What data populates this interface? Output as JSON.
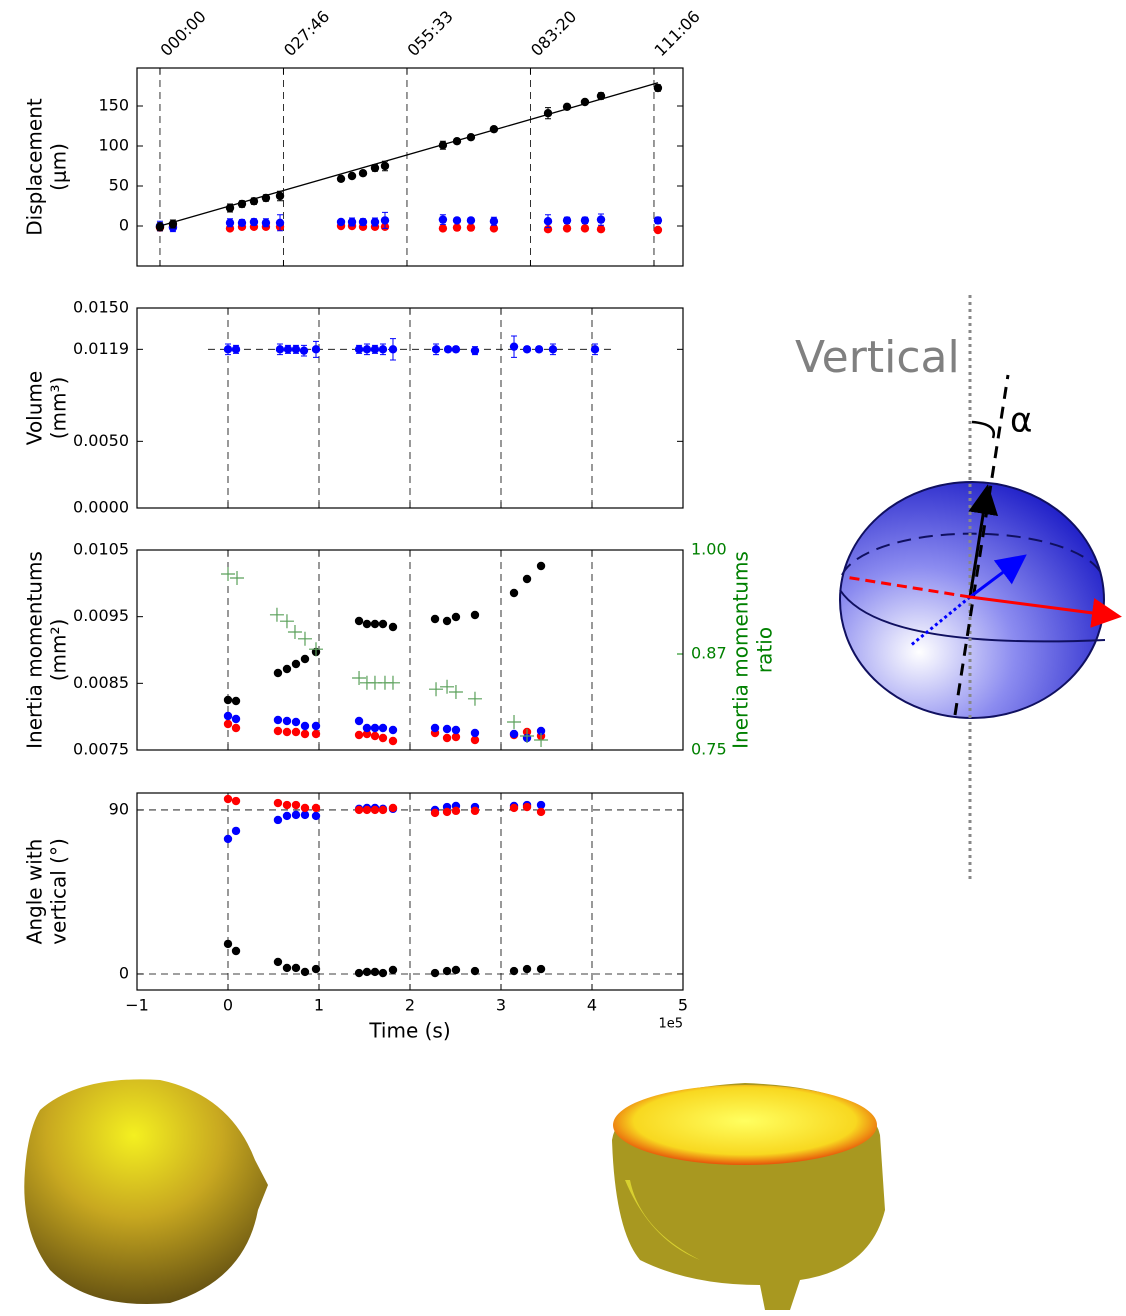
{
  "chart_data": [
    {
      "type": "scatter",
      "ylabel": [
        "Displacement",
        "(μm)"
      ],
      "xlim": [
        -0.186,
        4.235
      ],
      "ylim": [
        -50,
        197.5
      ],
      "xticks": [
        {
          "value": 0,
          "label": "000:00"
        },
        {
          "value": 1,
          "label": "027:46"
        },
        {
          "value": 2,
          "label": "055:33"
        },
        {
          "value": 3,
          "label": "083:20"
        },
        {
          "value": 4,
          "label": "111:06"
        }
      ],
      "xtick_position": "top",
      "yticks": [
        0,
        50,
        100,
        150
      ],
      "grid_x": true,
      "grid_y": false,
      "series": [
        {
          "kind": "points",
          "color": "#ff0000",
          "x": [
            0,
            0.105,
            0.567,
            0.664,
            0.761,
            0.858,
            0.972,
            1.466,
            1.555,
            1.644,
            1.741,
            1.822,
            2.291,
            2.405,
            2.518,
            2.704,
            3.142,
            3.296,
            3.441,
            3.571,
            4.032
          ],
          "values": [
            -2,
            -1,
            -3,
            -1,
            -1,
            -1,
            -1,
            0,
            0,
            -1,
            -1,
            -1,
            -3,
            -2,
            -2,
            -3,
            -4,
            -3,
            -3,
            -4,
            -5
          ]
        },
        {
          "kind": "points",
          "color": "#0000ff",
          "x": [
            0,
            0.105,
            0.567,
            0.664,
            0.761,
            0.858,
            0.972,
            1.466,
            1.555,
            1.644,
            1.741,
            1.822,
            2.291,
            2.405,
            2.518,
            2.704,
            3.142,
            3.296,
            3.441,
            3.571,
            4.032
          ],
          "values": [
            0,
            -2,
            4,
            4,
            5,
            4,
            4,
            5,
            5,
            5,
            5,
            7,
            8,
            7,
            7,
            6,
            6,
            7,
            7,
            8,
            7
          ],
          "errors": [
            6,
            5,
            5,
            4,
            4,
            5,
            10,
            3,
            5,
            4,
            5,
            10,
            6,
            3,
            3,
            5,
            8,
            4,
            4,
            7,
            4
          ]
        },
        {
          "kind": "line",
          "color": "#000000",
          "x": [
            0,
            4.032
          ],
          "values": [
            0,
            179
          ]
        },
        {
          "kind": "points",
          "color": "#000000",
          "x": [
            0,
            0.105,
            0.567,
            0.664,
            0.761,
            0.858,
            0.972,
            1.466,
            1.555,
            1.644,
            1.741,
            1.822,
            2.291,
            2.405,
            2.518,
            2.704,
            3.142,
            3.296,
            3.441,
            3.571,
            4.032
          ],
          "values": [
            -1,
            2.5,
            22.5,
            27.5,
            31,
            35,
            37.5,
            59,
            62.5,
            66,
            72.5,
            75,
            101,
            106,
            111,
            121,
            141,
            149,
            155,
            162.5,
            172.5
          ],
          "errors": [
            5,
            5,
            5,
            4,
            4,
            4,
            6,
            3,
            3,
            3,
            4,
            6,
            5,
            3,
            3,
            3,
            7,
            3,
            3,
            4,
            4
          ]
        }
      ]
    },
    {
      "type": "scatter",
      "ylabel": [
        "Volume",
        "(mm³)"
      ],
      "xlim": [
        -1,
        5
      ],
      "ylim": [
        0,
        0.015
      ],
      "xticks": [
        -1,
        0,
        1,
        2,
        3,
        4,
        5
      ],
      "xtick_position": "none",
      "yticks": [
        {
          "value": 0.015,
          "label": "0.0150"
        },
        {
          "value": 0.0119,
          "label": "0.0119"
        },
        {
          "value": 0.005,
          "label": "0.0050"
        },
        {
          "value": 0,
          "label": "0.0000"
        }
      ],
      "grid_x": true,
      "grid_y": false,
      "reference_line": {
        "y": 0.0119,
        "x": [
          -0.22,
          4.24
        ]
      },
      "series": [
        {
          "kind": "points",
          "color": "#0000ff",
          "x": [
            0,
            0.088,
            0.571,
            0.659,
            0.747,
            0.835,
            0.967,
            1.44,
            1.527,
            1.615,
            1.703,
            1.813,
            2.286,
            2.418,
            2.505,
            2.714,
            3.143,
            3.286,
            3.418,
            3.571,
            4.033
          ],
          "values": [
            0.0119,
            0.0119,
            0.0119,
            0.0119,
            0.0119,
            0.0118,
            0.0119,
            0.0119,
            0.0119,
            0.0119,
            0.0119,
            0.0119,
            0.0119,
            0.0119,
            0.0119,
            0.0118,
            0.0121,
            0.0119,
            0.0119,
            0.0119,
            0.0119
          ],
          "errors": [
            0.0004,
            0.0003,
            0.0004,
            0.0003,
            0.0003,
            0.0004,
            0.0006,
            0.0003,
            0.0004,
            0.0003,
            0.0004,
            0.0008,
            0.0004,
            0.0002,
            0.0002,
            0.0003,
            0.0008,
            0.0002,
            0.0002,
            0.0004,
            0.0004
          ]
        }
      ]
    },
    {
      "type": "scatter",
      "ylabel": [
        "Inertia momentums",
        "(mm²)"
      ],
      "y2label": [
        "Inertia momentums",
        "ratio"
      ],
      "y2color": "#008000",
      "xlim": [
        -1,
        5
      ],
      "ylim": [
        0.0075,
        0.0105
      ],
      "xticks": [
        -1,
        0,
        1,
        2,
        3,
        4,
        5
      ],
      "xtick_position": "none",
      "yticks": [
        {
          "value": 0.0105,
          "label": "0.0105"
        },
        {
          "value": 0.0095,
          "label": "0.0095"
        },
        {
          "value": 0.0085,
          "label": "0.0085"
        },
        {
          "value": 0.0075,
          "label": "0.0075"
        }
      ],
      "y2lim": [
        0.75,
        1.0
      ],
      "y2ticks": [
        {
          "value": 1.0,
          "label": "1.00"
        },
        0.87,
        0.75
      ],
      "grid_x": true,
      "grid_y": false,
      "series": [
        {
          "kind": "points",
          "color": "#ff0000",
          "x": [
            0,
            0.088,
            0.549,
            0.648,
            0.747,
            0.846,
            0.967,
            1.44,
            1.527,
            1.615,
            1.703,
            1.813,
            2.275,
            2.407,
            2.505,
            2.714,
            3.143,
            3.286,
            3.44
          ],
          "values": [
            0.00789,
            0.00783,
            0.007785,
            0.00777,
            0.00777,
            0.00774,
            0.00774,
            0.007725,
            0.00774,
            0.00771,
            0.00768,
            0.007635,
            0.007755,
            0.00768,
            0.007695,
            0.00765,
            0.007725,
            0.00777,
            0.00771
          ]
        },
        {
          "kind": "points",
          "color": "#0000ff",
          "x": [
            0,
            0.088,
            0.549,
            0.648,
            0.747,
            0.846,
            0.967,
            1.44,
            1.527,
            1.615,
            1.703,
            1.813,
            2.275,
            2.407,
            2.505,
            2.714,
            3.143,
            3.286,
            3.44
          ],
          "values": [
            0.00801,
            0.007965,
            0.00795,
            0.007935,
            0.00792,
            0.00786,
            0.00786,
            0.007935,
            0.00783,
            0.00783,
            0.00783,
            0.0078,
            0.00783,
            0.007815,
            0.0078,
            0.007755,
            0.00774,
            0.00768,
            0.007785
          ]
        },
        {
          "kind": "points",
          "color": "#000000",
          "x": [
            0,
            0.088,
            0.549,
            0.648,
            0.747,
            0.846,
            0.967,
            1.44,
            1.527,
            1.615,
            1.703,
            1.813,
            2.275,
            2.407,
            2.505,
            2.714,
            3.143,
            3.286,
            3.44
          ],
          "values": [
            0.00825,
            0.008235,
            0.008655,
            0.008715,
            0.00879,
            0.008865,
            0.00897,
            0.009435,
            0.00939,
            0.00939,
            0.00939,
            0.009345,
            0.009465,
            0.009435,
            0.009495,
            0.009525,
            0.009855,
            0.010065,
            0.01026
          ]
        },
        {
          "kind": "plus",
          "color": "#5aa05a",
          "axis": "y2",
          "x": [
            0,
            0.099,
            0.538,
            0.648,
            0.736,
            0.846,
            0.967,
            1.44,
            1.527,
            1.615,
            1.725,
            1.813,
            2.286,
            2.407,
            2.505,
            2.714,
            3.143,
            3.286,
            3.44
          ],
          "values": [
            0.97,
            0.965,
            0.919,
            0.911,
            0.8975,
            0.889,
            0.876,
            0.84,
            0.834,
            0.834,
            0.834,
            0.834,
            0.826,
            0.829,
            0.8225,
            0.814,
            0.785,
            0.7675,
            0.7625
          ]
        }
      ]
    },
    {
      "type": "scatter",
      "ylabel": [
        "Angle with",
        "vertical (°)"
      ],
      "xlabel": "Time (s)",
      "x_offset_label": "1e5",
      "xlim": [
        -1,
        5
      ],
      "ylim": [
        -8.8,
        99.3
      ],
      "xticks": [
        {
          "value": -1,
          "label": "−1"
        },
        0,
        1,
        2,
        3,
        4,
        5
      ],
      "xtick_position": "bottom",
      "yticks": [
        0,
        90
      ],
      "grid_x": true,
      "grid_y": true,
      "series": [
        {
          "kind": "points",
          "color": "#000000",
          "x": [
            0,
            0.088,
            0.549,
            0.648,
            0.747,
            0.846,
            0.967,
            1.44,
            1.527,
            1.615,
            1.703,
            1.813,
            2.275,
            2.407,
            2.505,
            2.714,
            3.143,
            3.286,
            3.44
          ],
          "values": [
            16.5,
            12.6,
            6.6,
            3.3,
            3.3,
            1.1,
            2.7,
            0.5,
            1.1,
            1.1,
            0.5,
            2.2,
            0.5,
            1.6,
            2.2,
            1.6,
            1.6,
            2.7,
            2.7
          ]
        },
        {
          "kind": "points",
          "color": "#0000ff",
          "x": [
            0,
            0.088,
            0.549,
            0.648,
            0.747,
            0.846,
            0.967,
            1.44,
            1.527,
            1.615,
            1.703,
            1.813,
            2.275,
            2.407,
            2.505,
            2.714,
            3.143,
            3.286,
            3.44
          ],
          "values": [
            74.1,
            78.5,
            84.5,
            86.7,
            87.3,
            87.3,
            86.7,
            90.6,
            91.1,
            91.1,
            90.6,
            90.6,
            90,
            91.6,
            92.2,
            91.6,
            92.2,
            92.7,
            92.7
          ]
        },
        {
          "kind": "points",
          "color": "#ff0000",
          "x": [
            0,
            0.088,
            0.549,
            0.648,
            0.747,
            0.846,
            0.967,
            1.44,
            1.527,
            1.615,
            1.703,
            1.813,
            2.275,
            2.407,
            2.505,
            2.714,
            3.143,
            3.286,
            3.44
          ],
          "values": [
            96,
            94.9,
            93.8,
            92.7,
            92.7,
            91.1,
            91.1,
            90,
            90,
            90,
            90,
            91.1,
            88.4,
            88.9,
            89.5,
            89.5,
            91.1,
            91.6,
            88.9
          ]
        }
      ]
    }
  ],
  "diagram": {
    "vertical_label": "Vertical",
    "angle_label": "α"
  }
}
